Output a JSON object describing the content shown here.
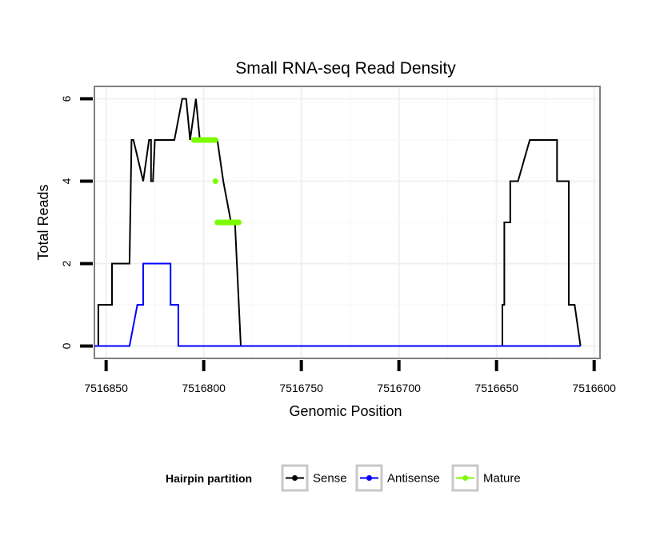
{
  "chart_data": {
    "type": "line",
    "title": "Small RNA-seq Read Density",
    "xlabel": "Genomic Position",
    "ylabel": "Total Reads",
    "xlim": [
      7516856,
      7516597
    ],
    "x_reversed": true,
    "ylim": [
      -0.3,
      6.3
    ],
    "x_ticks": [
      7516850,
      7516800,
      7516750,
      7516700,
      7516650,
      7516600
    ],
    "x_tick_labels": [
      "7516850",
      "7516800",
      "7516750",
      "7516700",
      "7516650",
      "7516600"
    ],
    "y_ticks": [
      0,
      2,
      4,
      6
    ],
    "y_tick_labels": [
      "0",
      "2",
      "4",
      "6"
    ],
    "grid": true,
    "legend": {
      "title": "Hairpin partition",
      "placement": "bottom",
      "entries": [
        "Sense",
        "Antisense",
        "Mature"
      ]
    },
    "series": [
      {
        "name": "Sense",
        "color": "#000000",
        "x": [
          7516856,
          7516854,
          7516854,
          7516851,
          7516851,
          7516847,
          7516847,
          7516842,
          7516841,
          7516838,
          7516838,
          7516837,
          7516836,
          7516836,
          7516831,
          7516831,
          7516828,
          7516827,
          7516827,
          7516826,
          7516825,
          7516825,
          7516824,
          7516815,
          7516811,
          7516809,
          7516807,
          7516804,
          7516804,
          7516802,
          7516800,
          7516797,
          7516793,
          7516790,
          7516786,
          7516784,
          7516781,
          7516650,
          7516647,
          7516647,
          7516646,
          7516646,
          7516643,
          7516643,
          7516639,
          7516633,
          7516625,
          7516621,
          7516621,
          7516619,
          7516619,
          7516617,
          7516617,
          7516613,
          7516613,
          7516613,
          7516610,
          7516607
        ],
        "y": [
          0,
          0,
          1,
          1,
          1,
          1,
          2,
          2,
          2,
          2,
          2,
          5,
          5,
          5,
          4,
          4,
          5,
          5,
          4,
          4,
          5,
          5,
          5,
          5,
          6,
          6,
          5,
          6,
          6,
          5,
          5,
          5,
          5,
          4,
          3,
          3,
          0,
          0,
          0,
          1,
          1,
          3,
          3,
          4,
          4,
          5,
          5,
          5,
          5,
          5,
          4,
          4,
          4,
          4,
          1,
          1,
          1,
          0
        ]
      },
      {
        "name": "Antisense",
        "color": "#0000ff",
        "x": [
          7516856,
          7516838,
          7516838,
          7516834,
          7516831,
          7516831,
          7516823,
          7516817,
          7516817,
          7516816,
          7516813,
          7516813,
          7516607
        ],
        "y": [
          0,
          0,
          0,
          1,
          1,
          2,
          2,
          2,
          1,
          1,
          1,
          0,
          0
        ]
      },
      {
        "name": "Mature",
        "color": "#7cfc00",
        "segments": [
          {
            "x": [
              7516805,
              7516794
            ],
            "y": [
              5,
              5
            ]
          },
          {
            "x": [
              7516794,
              7516794
            ],
            "y": [
              4,
              4
            ]
          },
          {
            "x": [
              7516793,
              7516782
            ],
            "y": [
              3,
              3
            ]
          }
        ]
      }
    ]
  }
}
